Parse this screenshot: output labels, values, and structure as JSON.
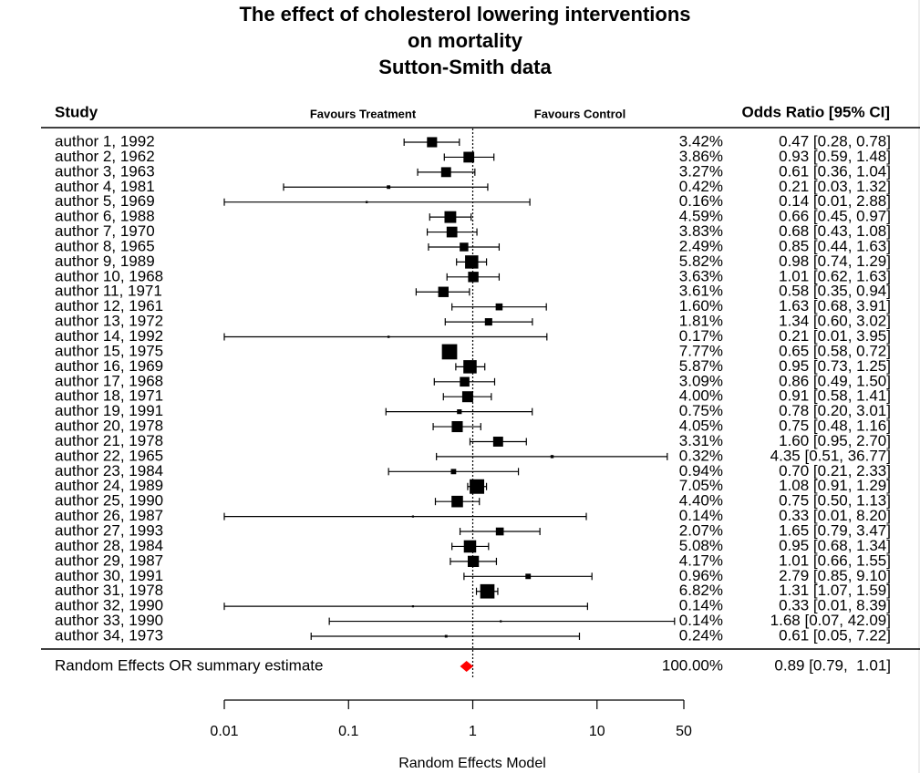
{
  "chart_data": {
    "type": "forest",
    "title": [
      "The effect of cholesterol lowering interventions",
      "on mortality",
      "Sutton-Smith data"
    ],
    "headers": {
      "study": "Study",
      "left": "Favours Treatment",
      "right": "Favours Control",
      "estimate": "Odds Ratio [95% CI]"
    },
    "x_label": "Random Effects Model",
    "log_x": true,
    "reference": 1,
    "xlim": [
      0.01,
      50
    ],
    "xticks": [
      0.01,
      0.1,
      1,
      10,
      50
    ],
    "color": "#000000",
    "studies": [
      "author 1, 1992",
      "author 2, 1962",
      "author 3, 1963",
      "author 4, 1981",
      "author 5, 1969",
      "author 6, 1988",
      "author 7, 1970",
      "author 8, 1965",
      "author 9, 1989",
      "author 10, 1968",
      "author 11, 1971",
      "author 12, 1961",
      "author 13, 1972",
      "author 14, 1992",
      "author 15, 1975",
      "author 16, 1969",
      "author 17, 1968",
      "author 18, 1971",
      "author 19, 1991",
      "author 20, 1978",
      "author 21, 1978",
      "author 22, 1965",
      "author 23, 1984",
      "author 24, 1989",
      "author 25, 1990",
      "author 26, 1987",
      "author 27, 1993",
      "author 28, 1984",
      "author 29, 1987",
      "author 30, 1991",
      "author 31, 1978",
      "author 32, 1990",
      "author 33, 1990",
      "author 34, 1973"
    ],
    "weights": [
      3.42,
      3.86,
      3.27,
      0.42,
      0.16,
      4.59,
      3.83,
      2.49,
      5.82,
      3.63,
      3.61,
      1.6,
      1.81,
      0.17,
      7.77,
      5.87,
      3.09,
      4.0,
      0.75,
      4.05,
      3.31,
      0.32,
      0.94,
      7.05,
      4.4,
      0.14,
      2.07,
      5.08,
      4.17,
      0.96,
      6.82,
      0.14,
      0.14,
      0.24
    ],
    "weight_labels": [
      "3.42%",
      "3.86%",
      "3.27%",
      "0.42%",
      "0.16%",
      "4.59%",
      "3.83%",
      "2.49%",
      "5.82%",
      "3.63%",
      "3.61%",
      "1.60%",
      "1.81%",
      "0.17%",
      "7.77%",
      "5.87%",
      "3.09%",
      "4.00%",
      "0.75%",
      "4.05%",
      "3.31%",
      "0.32%",
      "0.94%",
      "7.05%",
      "4.40%",
      "0.14%",
      "2.07%",
      "5.08%",
      "4.17%",
      "0.96%",
      "6.82%",
      "0.14%",
      "0.14%",
      "0.24%"
    ],
    "or": [
      0.47,
      0.93,
      0.61,
      0.21,
      0.14,
      0.66,
      0.68,
      0.85,
      0.98,
      1.01,
      0.58,
      1.63,
      1.34,
      0.21,
      0.65,
      0.95,
      0.86,
      0.91,
      0.78,
      0.75,
      1.6,
      4.35,
      0.7,
      1.08,
      0.75,
      0.33,
      1.65,
      0.95,
      1.01,
      2.79,
      1.31,
      0.33,
      1.68,
      0.61
    ],
    "ci_lower": [
      0.28,
      0.59,
      0.36,
      0.03,
      0.01,
      0.45,
      0.43,
      0.44,
      0.74,
      0.62,
      0.35,
      0.68,
      0.6,
      0.01,
      0.58,
      0.73,
      0.49,
      0.58,
      0.2,
      0.48,
      0.95,
      0.51,
      0.21,
      0.91,
      0.5,
      0.01,
      0.79,
      0.68,
      0.66,
      0.85,
      1.07,
      0.01,
      0.07,
      0.05
    ],
    "ci_upper": [
      0.78,
      1.48,
      1.04,
      1.32,
      2.88,
      0.97,
      1.08,
      1.63,
      1.29,
      1.63,
      0.94,
      3.91,
      3.02,
      3.95,
      0.72,
      1.25,
      1.5,
      1.41,
      3.01,
      1.16,
      2.7,
      36.77,
      2.33,
      1.29,
      1.13,
      8.2,
      3.47,
      1.34,
      1.55,
      9.1,
      1.59,
      8.39,
      42.09,
      7.22
    ],
    "or_labels": [
      "0.47 [0.28,  0.78]",
      "0.93 [0.59,  1.48]",
      "0.61 [0.36,  1.04]",
      "0.21 [0.03,  1.32]",
      "0.14 [0.01,  2.88]",
      "0.66 [0.45,  0.97]",
      "0.68 [0.43,  1.08]",
      "0.85 [0.44,  1.63]",
      "0.98 [0.74,  1.29]",
      "1.01 [0.62,  1.63]",
      "0.58 [0.35,  0.94]",
      "1.63 [0.68,  3.91]",
      "1.34 [0.60,  3.02]",
      "0.21 [0.01,  3.95]",
      "0.65 [0.58,  0.72]",
      "0.95 [0.73,  1.25]",
      "0.86 [0.49,  1.50]",
      "0.91 [0.58,  1.41]",
      "0.78 [0.20,  3.01]",
      "0.75 [0.48,  1.16]",
      "1.60 [0.95,  2.70]",
      "4.35 [0.51, 36.77]",
      "0.70 [0.21,  2.33]",
      "1.08 [0.91,  1.29]",
      "0.75 [0.50,  1.13]",
      "0.33 [0.01,  8.20]",
      "1.65 [0.79,  3.47]",
      "0.95 [0.68,  1.34]",
      "1.01 [0.66,  1.55]",
      "2.79 [0.85,  9.10]",
      "1.31 [1.07,  1.59]",
      "0.33 [0.01,  8.39]",
      "1.68 [0.07, 42.09]",
      "0.61 [0.05,  7.22]"
    ],
    "summary": {
      "label": "Random Effects OR summary estimate",
      "color": "#ff0000",
      "weight": 100,
      "weight_label": "100.00%",
      "or": 0.89,
      "ci_lower": 0.79,
      "ci_upper": 1.01,
      "or_label": "0.89 [0.79,  1.01]"
    }
  }
}
